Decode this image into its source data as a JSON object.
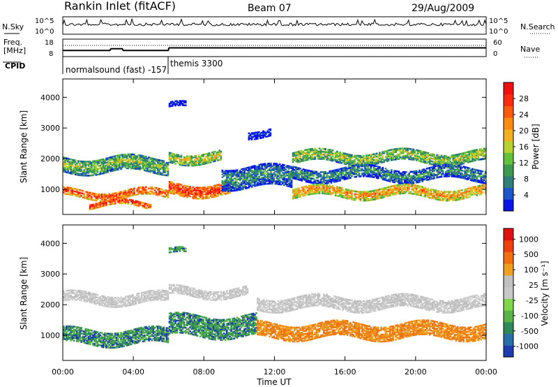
{
  "header": {
    "station": "Rankin Inlet (fitACF)",
    "beam": "Beam 07",
    "date": "29/Aug/2009"
  },
  "chart_data": [
    {
      "type": "line",
      "panel": "noise",
      "left_label": "N.Sky",
      "right_label": "N.Search",
      "left_ticks": [
        "10^5",
        "10^0"
      ],
      "right_ticks": [
        "10^5",
        "10^0"
      ],
      "series_color": "#000000"
    },
    {
      "type": "line",
      "panel": "frequency",
      "left_label_1": "Freq.",
      "left_label_2": "[MHz]",
      "right_label": "Nave",
      "left_ticks": [
        18,
        8
      ],
      "right_ticks": [
        60,
        0
      ],
      "ylim": [
        8,
        18
      ],
      "freq_segments": [
        {
          "x": [
            0.0,
            2.7
          ],
          "y": 11.5
        },
        {
          "x": [
            2.7,
            3.4
          ],
          "y": 12.5
        },
        {
          "x": [
            3.4,
            6.0
          ],
          "y": 11.5
        },
        {
          "x": [
            6.0,
            24.0
          ],
          "y": 13.0
        }
      ],
      "cpid_label": "CPID",
      "cpid_programs": [
        {
          "name": "normalsound (fast)",
          "id": "-157",
          "start": 0.0
        },
        {
          "name": "themis",
          "id": "3300",
          "start": 6.0
        }
      ]
    },
    {
      "type": "heatmap",
      "panel": "power",
      "ylabel": "Slant Range [km]",
      "yticks": [
        1000,
        2000,
        3000,
        4000
      ],
      "ylim": [
        180,
        4600
      ],
      "xlim": [
        0,
        24
      ],
      "colorbar_label": "Power [dB]",
      "colorbar_ticks": [
        4,
        8,
        12,
        16,
        20,
        24,
        28
      ],
      "colorbar_colors": [
        "#0a14e6",
        "#1b57c8",
        "#2f7f78",
        "#3d9a50",
        "#64c23a",
        "#b8d030",
        "#f0b020",
        "#ff8a10",
        "#ff5a10",
        "#ff2a10",
        "#f01010"
      ],
      "bands": [
        {
          "t0": 0.0,
          "t1": 6.0,
          "r_center": 850,
          "r_width": 260,
          "level": 0.85
        },
        {
          "t0": 1.5,
          "t1": 5.0,
          "r_center": 500,
          "r_width": 180,
          "level": 0.9
        },
        {
          "t0": 0.0,
          "t1": 6.0,
          "r_center": 1800,
          "r_width": 500,
          "level": 0.45
        },
        {
          "t0": 6.0,
          "t1": 9.5,
          "r_center": 1000,
          "r_width": 400,
          "level": 0.9
        },
        {
          "t0": 6.0,
          "t1": 9.0,
          "r_center": 2050,
          "r_width": 350,
          "level": 0.55
        },
        {
          "t0": 9.0,
          "t1": 13.0,
          "r_center": 1400,
          "r_width": 700,
          "level": 0.3
        },
        {
          "t0": 13.0,
          "t1": 24.0,
          "r_center": 2050,
          "r_width": 380,
          "level": 0.5
        },
        {
          "t0": 13.0,
          "t1": 24.0,
          "r_center": 1500,
          "r_width": 420,
          "level": 0.3
        },
        {
          "t0": 13.0,
          "t1": 24.0,
          "r_center": 900,
          "r_width": 330,
          "level": 0.7
        },
        {
          "t0": 6.0,
          "t1": 7.0,
          "r_center": 3700,
          "r_width": 180,
          "level": 0.05
        },
        {
          "t0": 10.5,
          "t1": 11.8,
          "r_center": 2850,
          "r_width": 250,
          "level": 0.1
        }
      ]
    },
    {
      "type": "heatmap",
      "panel": "velocity",
      "ylabel": "Slant Range [km]",
      "xlabel": "Time UT",
      "yticks": [
        1000,
        2000,
        3000,
        4000
      ],
      "ylim": [
        180,
        4600
      ],
      "xlim": [
        0,
        24
      ],
      "xticks": [
        "00:00",
        "04:00",
        "08:00",
        "12:00",
        "16:00",
        "20:00",
        "00:00"
      ],
      "xtick_values": [
        0,
        4,
        8,
        12,
        16,
        20,
        24
      ],
      "colorbar_label": "Velocity [m s⁻¹]",
      "colorbar_ticks": [
        "1000",
        "500",
        "100",
        "25",
        "-25",
        "-100",
        "-500",
        "-1000"
      ],
      "colorbar_colors": [
        "#1d3cb0",
        "#2a70a8",
        "#2e8a5a",
        "#5ab34a",
        "#7ed64a",
        "#c8c8c8",
        "#c0c0c0",
        "#f0a020",
        "#f07010",
        "#f04010",
        "#e01010"
      ],
      "bands": [
        {
          "t0": 0.0,
          "t1": 6.0,
          "r_center": 2200,
          "r_width": 350,
          "class": "gray"
        },
        {
          "t0": 0.0,
          "t1": 6.0,
          "r_center": 950,
          "r_width": 500,
          "class": "green"
        },
        {
          "t0": 6.0,
          "t1": 11.0,
          "r_center": 1300,
          "r_width": 700,
          "class": "green"
        },
        {
          "t0": 6.0,
          "t1": 10.5,
          "r_center": 2400,
          "r_width": 300,
          "class": "gray"
        },
        {
          "t0": 11.0,
          "t1": 24.0,
          "r_center": 2050,
          "r_width": 420,
          "class": "gray"
        },
        {
          "t0": 11.0,
          "t1": 24.0,
          "r_center": 1150,
          "r_width": 500,
          "class": "orange"
        },
        {
          "t0": 6.0,
          "t1": 7.0,
          "r_center": 3700,
          "r_width": 180,
          "class": "green"
        }
      ]
    }
  ]
}
